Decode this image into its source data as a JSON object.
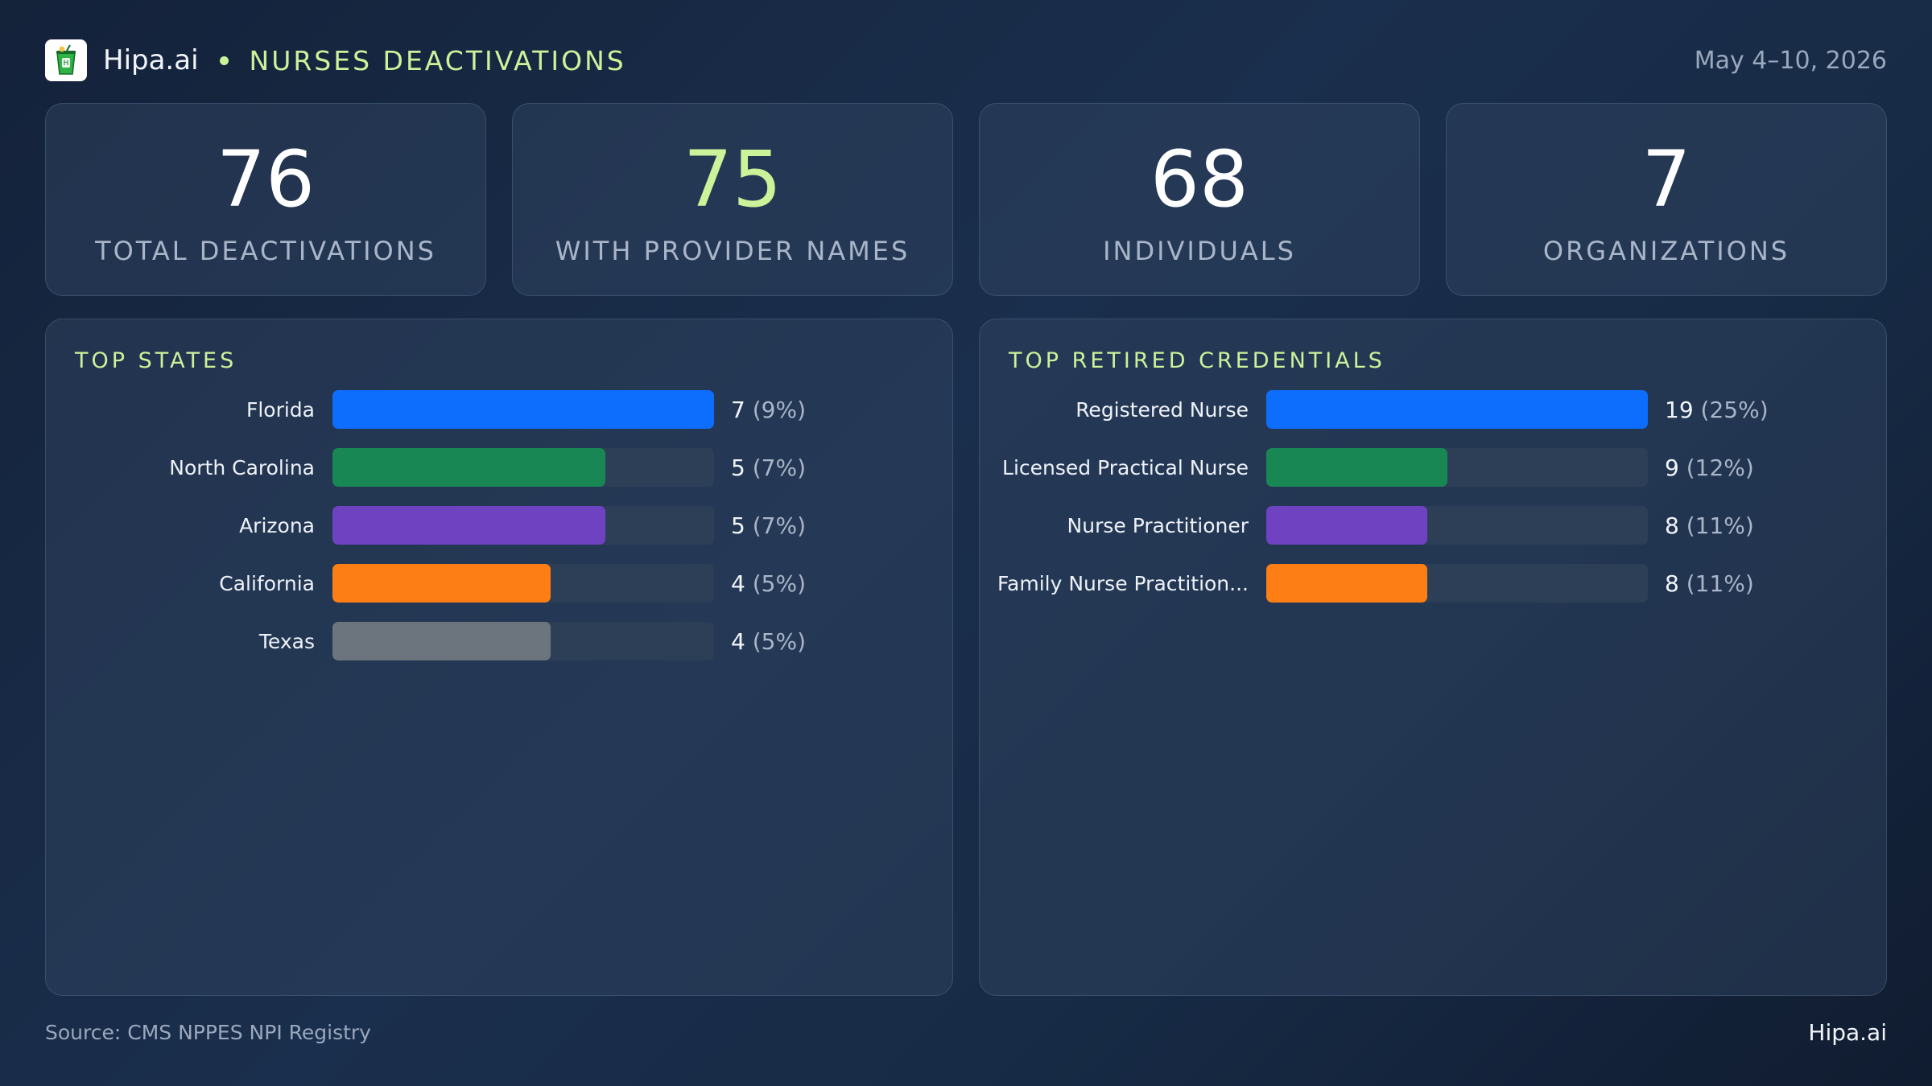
{
  "header": {
    "brand": "Hipa.ai",
    "section_title": "NURSES DEACTIVATIONS",
    "date_range": "May 4–10, 2026",
    "accent_color": "#ccf29a",
    "logo_icon": "drink-cup-icon"
  },
  "stats": [
    {
      "value": "76",
      "label": "TOTAL DEACTIVATIONS",
      "color": "#ffffff"
    },
    {
      "value": "75",
      "label": "WITH PROVIDER NAMES",
      "color": "#ccf29a"
    },
    {
      "value": "68",
      "label": "INDIVIDUALS",
      "color": "#ffffff"
    },
    {
      "value": "7",
      "label": "ORGANIZATIONS",
      "color": "#ffffff"
    }
  ],
  "chart_data": [
    {
      "type": "bar",
      "orientation": "horizontal",
      "title": "TOP STATES",
      "categories": [
        "Florida",
        "North Carolina",
        "Arizona",
        "California",
        "Texas"
      ],
      "values": [
        7,
        5,
        5,
        4,
        4
      ],
      "percent_labels": [
        "(9%)",
        "(7%)",
        "(7%)",
        "(5%)",
        "(5%)"
      ],
      "colors": [
        "#0d6efd",
        "#198754",
        "#6f42c1",
        "#fd7e14",
        "#6c757d"
      ],
      "xlim": [
        0,
        7
      ]
    },
    {
      "type": "bar",
      "orientation": "horizontal",
      "title": "TOP RETIRED CREDENTIALS",
      "categories": [
        "Registered Nurse",
        "Licensed Practical Nurse",
        "Nurse Practitioner",
        "Family Nurse Practition..."
      ],
      "values": [
        19,
        9,
        8,
        8
      ],
      "percent_labels": [
        "(25%)",
        "(12%)",
        "(11%)",
        "(11%)"
      ],
      "colors": [
        "#0d6efd",
        "#198754",
        "#6f42c1",
        "#fd7e14"
      ],
      "xlim": [
        0,
        19
      ]
    }
  ],
  "footer": {
    "source": "Source: CMS NPPES NPI Registry",
    "brand": "Hipa.ai"
  }
}
